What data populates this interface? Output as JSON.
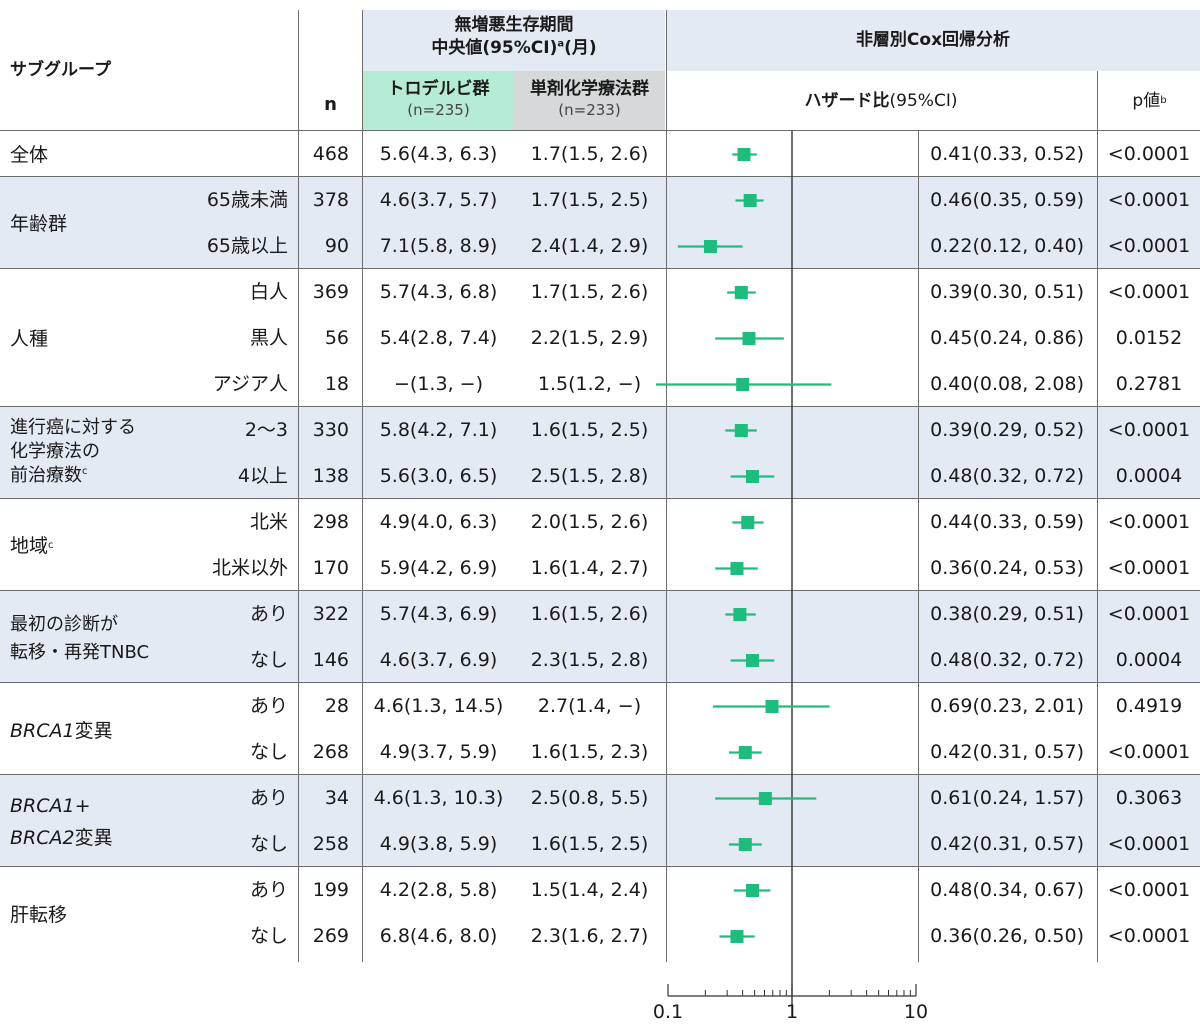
{
  "header": {
    "subgroup": "サブグループ",
    "n": "n",
    "pfs_title_line1": "無増悪生存期間",
    "pfs_title_line2": "中央値(95%CI)",
    "pfs_title_sup": "a",
    "pfs_title_unit": "(月)",
    "arm1_label": "トロデルビ群",
    "arm1_n": "(n=235)",
    "arm2_label": "単剤化学療法群",
    "arm2_n": "(n=233)",
    "cox_title": "非層別Cox回帰分析",
    "hr_label": "ハザード比",
    "hr_ci": "(95%CI)",
    "p_label": "p値",
    "p_sup": "b"
  },
  "groups": [
    {
      "label": "全体",
      "rows": 1
    },
    {
      "label": "年齢群",
      "rows": 2
    },
    {
      "label": "人種",
      "rows": 3
    },
    {
      "label_lines": [
        "進行癌に対する",
        "化学療法の",
        "前治療数"
      ],
      "sup": "c",
      "rows": 2
    },
    {
      "label": "地域",
      "sup": "c",
      "rows": 2
    },
    {
      "label_lines": [
        "最初の診断が",
        "転移・再発TNBC"
      ],
      "rows": 2
    },
    {
      "label_italic": "BRCA1",
      "label_rest": "変異",
      "rows": 2
    },
    {
      "label_lines_italic": [
        {
          "italic": "BRCA1",
          "rest": "+"
        },
        {
          "italic": "BRCA2",
          "rest": "変異"
        }
      ],
      "rows": 2
    },
    {
      "label": "肝転移",
      "rows": 2
    }
  ],
  "rows": [
    {
      "sub": "",
      "n": "468",
      "arm1": "5.6(4.3, 6.3)",
      "arm2": "1.7(1.5, 2.6)",
      "hr_text": "0.41(0.33, 0.52)",
      "p": "<0.0001"
    },
    {
      "sub": "65歳未満",
      "n": "378",
      "arm1": "4.6(3.7, 5.7)",
      "arm2": "1.7(1.5, 2.5)",
      "hr_text": "0.46(0.35, 0.59)",
      "p": "<0.0001"
    },
    {
      "sub": "65歳以上",
      "n": "90",
      "arm1": "7.1(5.8, 8.9)",
      "arm2": "2.4(1.4, 2.9)",
      "hr_text": "0.22(0.12, 0.40)",
      "p": "<0.0001"
    },
    {
      "sub": "白人",
      "n": "369",
      "arm1": "5.7(4.3, 6.8)",
      "arm2": "1.7(1.5, 2.6)",
      "hr_text": "0.39(0.30, 0.51)",
      "p": "<0.0001"
    },
    {
      "sub": "黒人",
      "n": "56",
      "arm1": "5.4(2.8, 7.4)",
      "arm2": "2.2(1.5, 2.9)",
      "hr_text": "0.45(0.24, 0.86)",
      "p": "0.0152"
    },
    {
      "sub": "アジア人",
      "n": "18",
      "arm1": "−(1.3, −)",
      "arm2": "1.5(1.2, −)",
      "hr_text": "0.40(0.08, 2.08)",
      "p": "0.2781"
    },
    {
      "sub": "2〜3",
      "n": "330",
      "arm1": "5.8(4.2, 7.1)",
      "arm2": "1.6(1.5, 2.5)",
      "hr_text": "0.39(0.29, 0.52)",
      "p": "<0.0001"
    },
    {
      "sub": "4以上",
      "n": "138",
      "arm1": "5.6(3.0, 6.5)",
      "arm2": "2.5(1.5, 2.8)",
      "hr_text": "0.48(0.32, 0.72)",
      "p": "0.0004"
    },
    {
      "sub": "北米",
      "n": "298",
      "arm1": "4.9(4.0, 6.3)",
      "arm2": "2.0(1.5, 2.6)",
      "hr_text": "0.44(0.33, 0.59)",
      "p": "<0.0001"
    },
    {
      "sub": "北米以外",
      "n": "170",
      "arm1": "5.9(4.2, 6.9)",
      "arm2": "1.6(1.4, 2.7)",
      "hr_text": "0.36(0.24, 0.53)",
      "p": "<0.0001"
    },
    {
      "sub": "あり",
      "n": "322",
      "arm1": "5.7(4.3, 6.9)",
      "arm2": "1.6(1.5, 2.6)",
      "hr_text": "0.38(0.29, 0.51)",
      "p": "<0.0001"
    },
    {
      "sub": "なし",
      "n": "146",
      "arm1": "4.6(3.7, 6.9)",
      "arm2": "2.3(1.5, 2.8)",
      "hr_text": "0.48(0.32, 0.72)",
      "p": "0.0004"
    },
    {
      "sub": "あり",
      "n": "28",
      "arm1": "4.6(1.3, 14.5)",
      "arm2": "2.7(1.4, −)",
      "hr_text": "0.69(0.23, 2.01)",
      "p": "0.4919"
    },
    {
      "sub": "なし",
      "n": "268",
      "arm1": "4.9(3.7, 5.9)",
      "arm2": "1.6(1.5, 2.3)",
      "hr_text": "0.42(0.31, 0.57)",
      "p": "<0.0001"
    },
    {
      "sub": "あり",
      "n": "34",
      "arm1": "4.6(1.3, 10.3)",
      "arm2": "2.5(0.8, 5.5)",
      "hr_text": "0.61(0.24, 1.57)",
      "p": "0.3063"
    },
    {
      "sub": "なし",
      "n": "258",
      "arm1": "4.9(3.8, 5.9)",
      "arm2": "1.6(1.5, 2.5)",
      "hr_text": "0.42(0.31, 0.57)",
      "p": "<0.0001"
    },
    {
      "sub": "あり",
      "n": "199",
      "arm1": "4.2(2.8, 5.8)",
      "arm2": "1.5(1.4, 2.4)",
      "hr_text": "0.48(0.34, 0.67)",
      "p": "<0.0001"
    },
    {
      "sub": "なし",
      "n": "269",
      "arm1": "6.8(4.6, 8.0)",
      "arm2": "2.3(1.6, 2.7)",
      "hr_text": "0.36(0.26, 0.50)",
      "p": "<0.0001"
    }
  ],
  "colors": {
    "marker": "#1fbd7d",
    "band": "#e4eaf3",
    "arm1_header": "#b7ecd4",
    "arm2_header": "#d6d8da",
    "rule": "#6c6c6c",
    "axis": "#333333"
  },
  "chart_data": {
    "type": "forest",
    "scale": "log",
    "xlim": [
      0.1,
      10
    ],
    "reference_line": 1,
    "x_ticks": [
      "0.1",
      "1",
      "10"
    ],
    "points": [
      {
        "hr": 0.41,
        "lo": 0.33,
        "hi": 0.52
      },
      {
        "hr": 0.46,
        "lo": 0.35,
        "hi": 0.59
      },
      {
        "hr": 0.22,
        "lo": 0.12,
        "hi": 0.4
      },
      {
        "hr": 0.39,
        "lo": 0.3,
        "hi": 0.51
      },
      {
        "hr": 0.45,
        "lo": 0.24,
        "hi": 0.86
      },
      {
        "hr": 0.4,
        "lo": 0.08,
        "hi": 2.08
      },
      {
        "hr": 0.39,
        "lo": 0.29,
        "hi": 0.52
      },
      {
        "hr": 0.48,
        "lo": 0.32,
        "hi": 0.72
      },
      {
        "hr": 0.44,
        "lo": 0.33,
        "hi": 0.59
      },
      {
        "hr": 0.36,
        "lo": 0.24,
        "hi": 0.53
      },
      {
        "hr": 0.38,
        "lo": 0.29,
        "hi": 0.51
      },
      {
        "hr": 0.48,
        "lo": 0.32,
        "hi": 0.72
      },
      {
        "hr": 0.69,
        "lo": 0.23,
        "hi": 2.01
      },
      {
        "hr": 0.42,
        "lo": 0.31,
        "hi": 0.57
      },
      {
        "hr": 0.61,
        "lo": 0.24,
        "hi": 1.57
      },
      {
        "hr": 0.42,
        "lo": 0.31,
        "hi": 0.57
      },
      {
        "hr": 0.48,
        "lo": 0.34,
        "hi": 0.67
      },
      {
        "hr": 0.36,
        "lo": 0.26,
        "hi": 0.5
      }
    ]
  }
}
